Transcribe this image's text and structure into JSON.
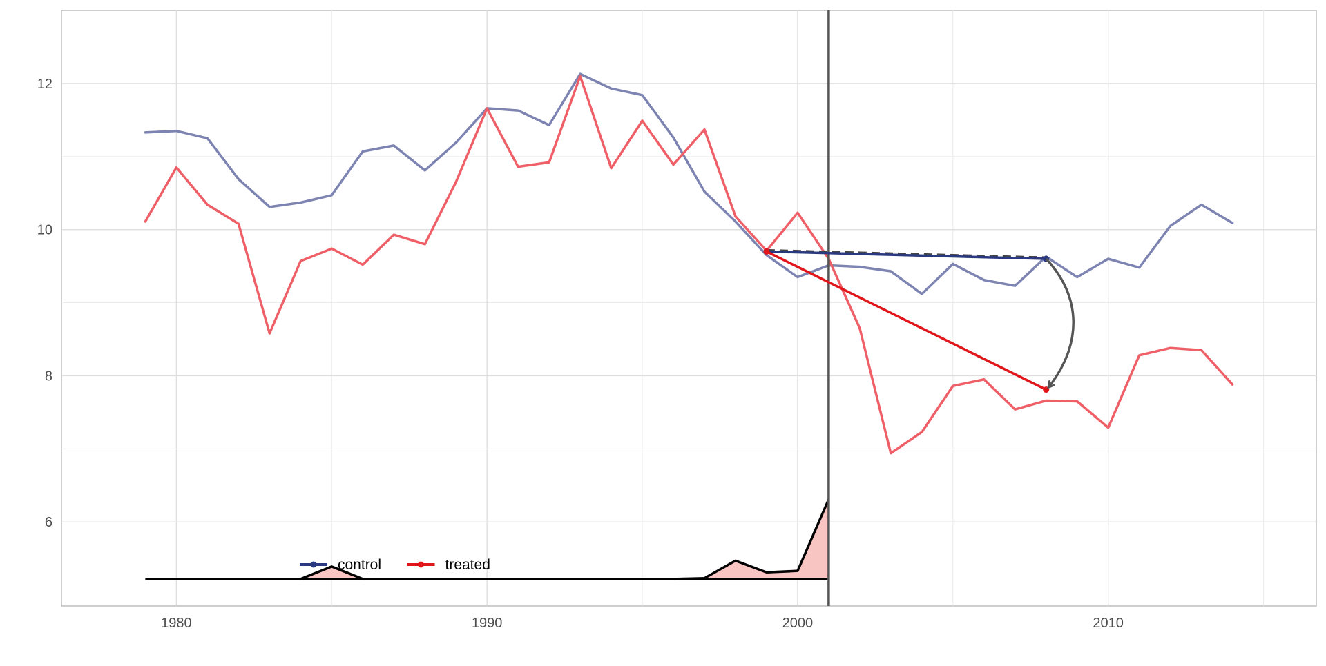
{
  "chart_data": {
    "type": "line",
    "title": "",
    "xlabel": "",
    "ylabel": "",
    "xlim": [
      1976.3,
      2016.7
    ],
    "ylim": [
      4.85,
      13.0
    ],
    "x_ticks": [
      1980,
      1990,
      2000,
      2010
    ],
    "y_ticks": [
      6,
      8,
      10,
      12
    ],
    "x_minor_ticks": [
      1975,
      1985,
      1995,
      2005,
      2015
    ],
    "y_minor_ticks": [
      7,
      9,
      11
    ],
    "grid": true,
    "legend_position": "bottom-left, inside plot",
    "treatment_year": 2001,
    "x": [
      1979,
      1980,
      1981,
      1982,
      1983,
      1984,
      1985,
      1986,
      1987,
      1988,
      1989,
      1990,
      1991,
      1992,
      1993,
      1994,
      1995,
      1996,
      1997,
      1998,
      1999,
      2000,
      2001,
      2002,
      2003,
      2004,
      2005,
      2006,
      2007,
      2008,
      2009,
      2010,
      2011,
      2012,
      2013,
      2014
    ],
    "series": [
      {
        "name": "control",
        "color": "#7d84b2",
        "values": [
          11.33,
          11.35,
          11.25,
          10.69,
          10.31,
          10.37,
          10.47,
          11.07,
          11.15,
          10.81,
          11.19,
          11.66,
          11.63,
          11.43,
          12.13,
          11.93,
          11.84,
          11.26,
          10.52,
          10.11,
          9.65,
          9.35,
          9.51,
          9.49,
          9.43,
          9.12,
          9.53,
          9.31,
          9.23,
          9.63,
          9.35,
          9.6,
          9.48,
          10.05,
          10.34,
          10.09
        ]
      },
      {
        "name": "treated",
        "color": "#ef5f67",
        "values": [
          10.11,
          10.85,
          10.34,
          10.08,
          8.58,
          9.57,
          9.74,
          9.52,
          9.93,
          9.8,
          10.65,
          11.66,
          10.86,
          10.92,
          12.1,
          10.84,
          11.49,
          10.89,
          11.37,
          10.18,
          9.71,
          10.23,
          9.6,
          8.65,
          6.94,
          7.23,
          7.86,
          7.95,
          7.54,
          7.66,
          7.65,
          7.29,
          8.28,
          8.38,
          8.35,
          7.88
        ]
      }
    ],
    "did_arrows": [
      {
        "name": "control",
        "color": "#2b3a80",
        "from": [
          1999,
          9.7
        ],
        "to": [
          2008,
          9.6
        ]
      },
      {
        "name": "treated",
        "color": "#e0161b",
        "from": [
          1999,
          9.7
        ],
        "to": [
          2008,
          7.81
        ]
      }
    ],
    "curved_arrow": {
      "color": "#555555",
      "from": [
        2008,
        9.6
      ],
      "to": [
        2008,
        7.81
      ]
    },
    "weights": {
      "baseline": 5.22,
      "x": [
        1979,
        1980,
        1981,
        1982,
        1983,
        1984,
        1985,
        1986,
        1987,
        1988,
        1989,
        1990,
        1991,
        1992,
        1993,
        1994,
        1995,
        1996,
        1997,
        1998,
        1999,
        2000,
        2001
      ],
      "values": [
        5.22,
        5.22,
        5.22,
        5.22,
        5.22,
        5.22,
        5.39,
        5.22,
        5.22,
        5.22,
        5.22,
        5.22,
        5.22,
        5.22,
        5.22,
        5.22,
        5.22,
        5.22,
        5.23,
        5.47,
        5.31,
        5.33,
        6.31
      ],
      "fill_color": "#f8c5c3",
      "line_color": "#000000"
    },
    "legend": [
      {
        "label": "control",
        "color": "#2b3a80"
      },
      {
        "label": "treated",
        "color": "#e0161b"
      }
    ]
  }
}
